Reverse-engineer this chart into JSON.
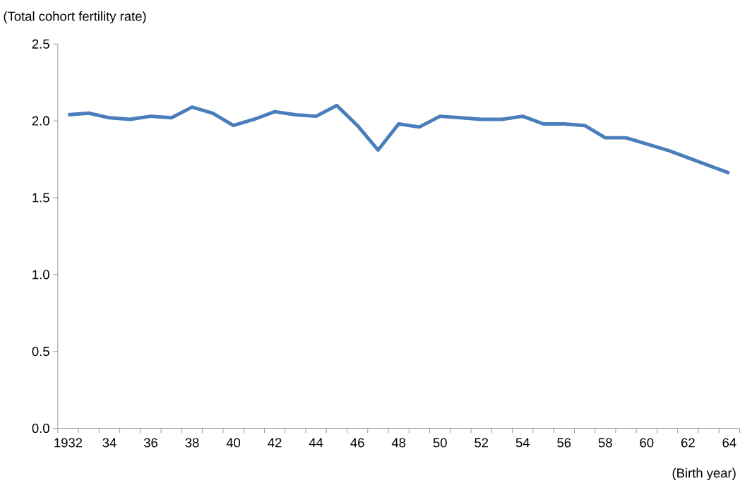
{
  "chart_data": {
    "type": "line",
    "xlabel": "(Birth year)",
    "ylabel": "(Total cohort fertility rate)",
    "categories": [
      "1932",
      null,
      "34",
      null,
      "36",
      null,
      "38",
      null,
      "40",
      null,
      "42",
      null,
      "44",
      null,
      "46",
      null,
      "48",
      null,
      "50",
      null,
      "52",
      null,
      "54",
      null,
      "56",
      null,
      "58",
      null,
      "60",
      null,
      "62",
      null,
      "64"
    ],
    "series": [
      {
        "color": "#4a7ebb",
        "values": [
          2.04,
          2.05,
          2.02,
          2.01,
          2.03,
          2.02,
          2.09,
          2.05,
          1.97,
          2.01,
          2.06,
          2.04,
          2.03,
          2.1,
          1.97,
          1.81,
          1.98,
          1.96,
          2.03,
          2.02,
          2.01,
          2.01,
          2.03,
          1.98,
          1.98,
          1.97,
          1.89,
          1.89,
          1.85,
          1.81,
          1.76,
          1.71,
          1.66
        ]
      }
    ],
    "ylim": [
      0,
      2.5
    ],
    "yticks": [
      {
        "value": 0,
        "label": "0.0"
      },
      {
        "value": 0.5,
        "label": "0.5"
      },
      {
        "value": 1,
        "label": "1.0"
      },
      {
        "value": 1.5,
        "label": "1.5"
      },
      {
        "value": 2,
        "label": "2.0"
      },
      {
        "value": 2.5,
        "label": "2.5"
      }
    ],
    "grid": false,
    "marker": "none",
    "line_style": "solid"
  }
}
